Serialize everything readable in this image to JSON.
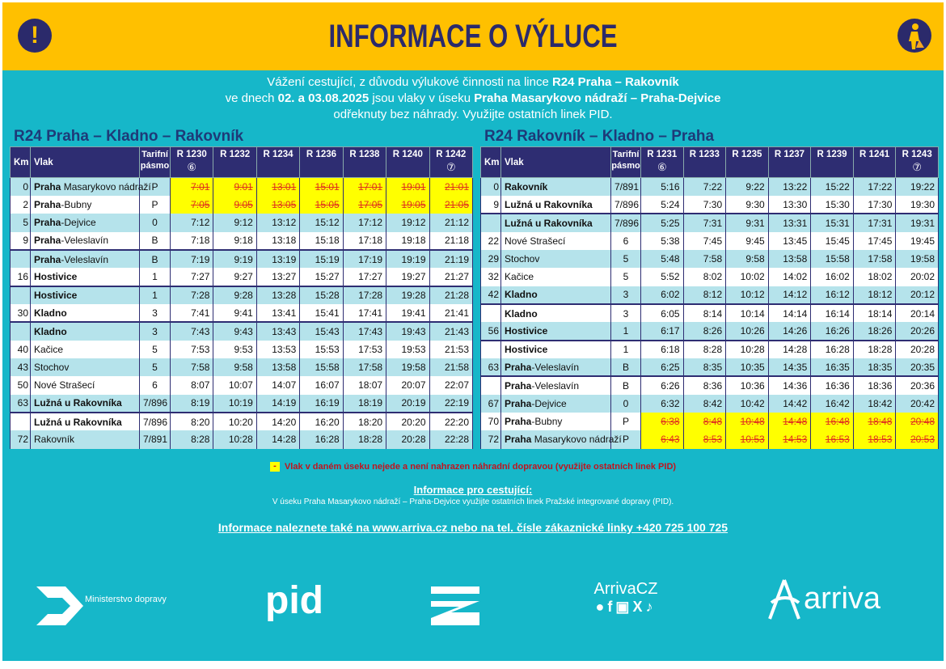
{
  "header": {
    "title": "INFORMACE O VÝLUCE",
    "left_icon": "exclamation-icon",
    "right_icon": "worker-icon"
  },
  "intro": {
    "line1": "Vážení cestující, z důvodu výlukové činnosti na lince ",
    "line1_bold": "R24 Praha – Rakovník",
    "line2a": "ve dnech ",
    "line2_bold1": "02. a 03.08.2025",
    "line2b": " jsou vlaky v úseku ",
    "line2_bold2": "Praha Masarykovo nádraží – Praha-Dejvice",
    "line3": "odřeknuty bez náhrady. Využijte ostatních linek PID."
  },
  "colors": {
    "header": "#FFC000",
    "background": "#16B7C9",
    "navy": "#2E2D72",
    "cancelled_fill": "#FFFF00",
    "cancelled_text": "#E0301E"
  },
  "tables": [
    {
      "title": "R24 Praha – Kladno – Rakovník",
      "headers": {
        "km": "Km",
        "vlak": "Vlak",
        "zone": "Tarifní pásmo"
      },
      "trains": [
        {
          "n": "R 1230",
          "m": "⑥"
        },
        {
          "n": "R 1232",
          "m": ""
        },
        {
          "n": "R 1234",
          "m": ""
        },
        {
          "n": "R 1236",
          "m": ""
        },
        {
          "n": "R 1238",
          "m": ""
        },
        {
          "n": "R 1240",
          "m": ""
        },
        {
          "n": "R 1242",
          "m": "⑦"
        }
      ],
      "rows": [
        {
          "km": "0",
          "b": "Praha",
          "r": " Masarykovo nádraží",
          "z": "P",
          "t": [
            "7:01",
            "9:01",
            "13:01",
            "15:01",
            "17:01",
            "19:01",
            "21:01"
          ],
          "cancelled": true
        },
        {
          "km": "2",
          "b": "Praha",
          "r": "-Bubny",
          "z": "P",
          "t": [
            "7:05",
            "9:05",
            "13:05",
            "15:05",
            "17:05",
            "19:05",
            "21:05"
          ],
          "cancelled": true
        },
        {
          "km": "5",
          "b": "Praha",
          "r": "-Dejvice",
          "z": "0",
          "t": [
            "7:12",
            "9:12",
            "13:12",
            "15:12",
            "17:12",
            "19:12",
            "21:12"
          ]
        },
        {
          "km": "9",
          "b": "Praha",
          "r": "-Veleslavín",
          "z": "B",
          "t": [
            "7:18",
            "9:18",
            "13:18",
            "15:18",
            "17:18",
            "19:18",
            "21:18"
          ]
        },
        {
          "km": "",
          "b": "Praha",
          "r": "-Veleslavín",
          "z": "B",
          "t": [
            "7:19",
            "9:19",
            "13:19",
            "15:19",
            "17:19",
            "19:19",
            "21:19"
          ],
          "sep": true
        },
        {
          "km": "16",
          "b": "Hostivice",
          "r": "",
          "z": "1",
          "t": [
            "7:27",
            "9:27",
            "13:27",
            "15:27",
            "17:27",
            "19:27",
            "21:27"
          ]
        },
        {
          "km": "",
          "b": "Hostivice",
          "r": "",
          "z": "1",
          "t": [
            "7:28",
            "9:28",
            "13:28",
            "15:28",
            "17:28",
            "19:28",
            "21:28"
          ],
          "sep": true
        },
        {
          "km": "30",
          "b": "Kladno",
          "r": "",
          "z": "3",
          "t": [
            "7:41",
            "9:41",
            "13:41",
            "15:41",
            "17:41",
            "19:41",
            "21:41"
          ]
        },
        {
          "km": "",
          "b": "Kladno",
          "r": "",
          "z": "3",
          "t": [
            "7:43",
            "9:43",
            "13:43",
            "15:43",
            "17:43",
            "19:43",
            "21:43"
          ],
          "sep": true
        },
        {
          "km": "40",
          "b": "",
          "r": "Kačice",
          "z": "5",
          "t": [
            "7:53",
            "9:53",
            "13:53",
            "15:53",
            "17:53",
            "19:53",
            "21:53"
          ]
        },
        {
          "km": "43",
          "b": "",
          "r": "Stochov",
          "z": "5",
          "t": [
            "7:58",
            "9:58",
            "13:58",
            "15:58",
            "17:58",
            "19:58",
            "21:58"
          ]
        },
        {
          "km": "50",
          "b": "",
          "r": "Nové Strašecí",
          "z": "6",
          "t": [
            "8:07",
            "10:07",
            "14:07",
            "16:07",
            "18:07",
            "20:07",
            "22:07"
          ]
        },
        {
          "km": "63",
          "b": "Lužná u Rakovníka",
          "r": "",
          "z": "7/896",
          "t": [
            "8:19",
            "10:19",
            "14:19",
            "16:19",
            "18:19",
            "20:19",
            "22:19"
          ]
        },
        {
          "km": "",
          "b": "Lužná u Rakovníka",
          "r": "",
          "z": "7/896",
          "t": [
            "8:20",
            "10:20",
            "14:20",
            "16:20",
            "18:20",
            "20:20",
            "22:20"
          ],
          "sep": true
        },
        {
          "km": "72",
          "b": "",
          "r": "Rakovník",
          "z": "7/891",
          "t": [
            "8:28",
            "10:28",
            "14:28",
            "16:28",
            "18:28",
            "20:28",
            "22:28"
          ]
        }
      ]
    },
    {
      "title": "R24 Rakovník – Kladno – Praha",
      "headers": {
        "km": "Km",
        "vlak": "Vlak",
        "zone": "Tarifní pásmo"
      },
      "trains": [
        {
          "n": "R 1231",
          "m": "⑥"
        },
        {
          "n": "R 1233",
          "m": ""
        },
        {
          "n": "R 1235",
          "m": ""
        },
        {
          "n": "R 1237",
          "m": ""
        },
        {
          "n": "R 1239",
          "m": ""
        },
        {
          "n": "R 1241",
          "m": ""
        },
        {
          "n": "R 1243",
          "m": "⑦"
        }
      ],
      "rows": [
        {
          "km": "0",
          "b": "Rakovník",
          "r": "",
          "z": "7/891",
          "t": [
            "5:16",
            "7:22",
            "9:22",
            "13:22",
            "15:22",
            "17:22",
            "19:22"
          ]
        },
        {
          "km": "9",
          "b": "Lužná u Rakovníka",
          "r": "",
          "z": "7/896",
          "t": [
            "5:24",
            "7:30",
            "9:30",
            "13:30",
            "15:30",
            "17:30",
            "19:30"
          ]
        },
        {
          "km": "",
          "b": "Lužná u Rakovníka",
          "r": "",
          "z": "7/896",
          "t": [
            "5:25",
            "7:31",
            "9:31",
            "13:31",
            "15:31",
            "17:31",
            "19:31"
          ],
          "sep": true
        },
        {
          "km": "22",
          "b": "",
          "r": "Nové Strašecí",
          "z": "6",
          "t": [
            "5:38",
            "7:45",
            "9:45",
            "13:45",
            "15:45",
            "17:45",
            "19:45"
          ]
        },
        {
          "km": "29",
          "b": "",
          "r": "Stochov",
          "z": "5",
          "t": [
            "5:48",
            "7:58",
            "9:58",
            "13:58",
            "15:58",
            "17:58",
            "19:58"
          ]
        },
        {
          "km": "32",
          "b": "",
          "r": "Kačice",
          "z": "5",
          "t": [
            "5:52",
            "8:02",
            "10:02",
            "14:02",
            "16:02",
            "18:02",
            "20:02"
          ]
        },
        {
          "km": "42",
          "b": "Kladno",
          "r": "",
          "z": "3",
          "t": [
            "6:02",
            "8:12",
            "10:12",
            "14:12",
            "16:12",
            "18:12",
            "20:12"
          ]
        },
        {
          "km": "",
          "b": "Kladno",
          "r": "",
          "z": "3",
          "t": [
            "6:05",
            "8:14",
            "10:14",
            "14:14",
            "16:14",
            "18:14",
            "20:14"
          ],
          "sep": true
        },
        {
          "km": "56",
          "b": "Hostivice",
          "r": "",
          "z": "1",
          "t": [
            "6:17",
            "8:26",
            "10:26",
            "14:26",
            "16:26",
            "18:26",
            "20:26"
          ]
        },
        {
          "km": "",
          "b": "Hostivice",
          "r": "",
          "z": "1",
          "t": [
            "6:18",
            "8:28",
            "10:28",
            "14:28",
            "16:28",
            "18:28",
            "20:28"
          ],
          "sep": true
        },
        {
          "km": "63",
          "b": "Praha",
          "r": "-Veleslavín",
          "z": "B",
          "t": [
            "6:25",
            "8:35",
            "10:35",
            "14:35",
            "16:35",
            "18:35",
            "20:35"
          ]
        },
        {
          "km": "",
          "b": "Praha",
          "r": "-Veleslavín",
          "z": "B",
          "t": [
            "6:26",
            "8:36",
            "10:36",
            "14:36",
            "16:36",
            "18:36",
            "20:36"
          ],
          "sep": true
        },
        {
          "km": "67",
          "b": "Praha",
          "r": "-Dejvice",
          "z": "0",
          "t": [
            "6:32",
            "8:42",
            "10:42",
            "14:42",
            "16:42",
            "18:42",
            "20:42"
          ]
        },
        {
          "km": "70",
          "b": "Praha",
          "r": "-Bubny",
          "z": "P",
          "t": [
            "6:38",
            "8:48",
            "10:48",
            "14:48",
            "16:48",
            "18:48",
            "20:48"
          ],
          "cancelled": true
        },
        {
          "km": "72",
          "b": "Praha",
          "r": " Masarykovo nádraží",
          "z": "P",
          "t": [
            "6:43",
            "8:53",
            "10:53",
            "14:53",
            "16:53",
            "18:53",
            "20:53"
          ],
          "cancelled": true
        }
      ]
    }
  ],
  "legend": {
    "marker": "-",
    "text": "Vlak v daném úseku nejede a není nahrazen náhradní dopravou (využijte ostatních linek PID)"
  },
  "info": {
    "heading": "Informace pro cestující:",
    "text": "V úseku Praha Masarykovo nádraží – Praha-Dejvice využijte ostatních linek Pražské integrované dopravy (PID).",
    "link": "Informace naleznete také na www.arriva.cz nebo na tel. čísle zákaznické linky +420 725 100 725"
  },
  "logos": {
    "ministry": "Ministerstvo dopravy",
    "pid": "pid",
    "arrivacz": "ArrivaCZ",
    "arriva": "arriva",
    "social_icons": [
      "messenger-icon",
      "facebook-icon",
      "instagram-icon",
      "x-icon",
      "tiktok-icon"
    ]
  }
}
